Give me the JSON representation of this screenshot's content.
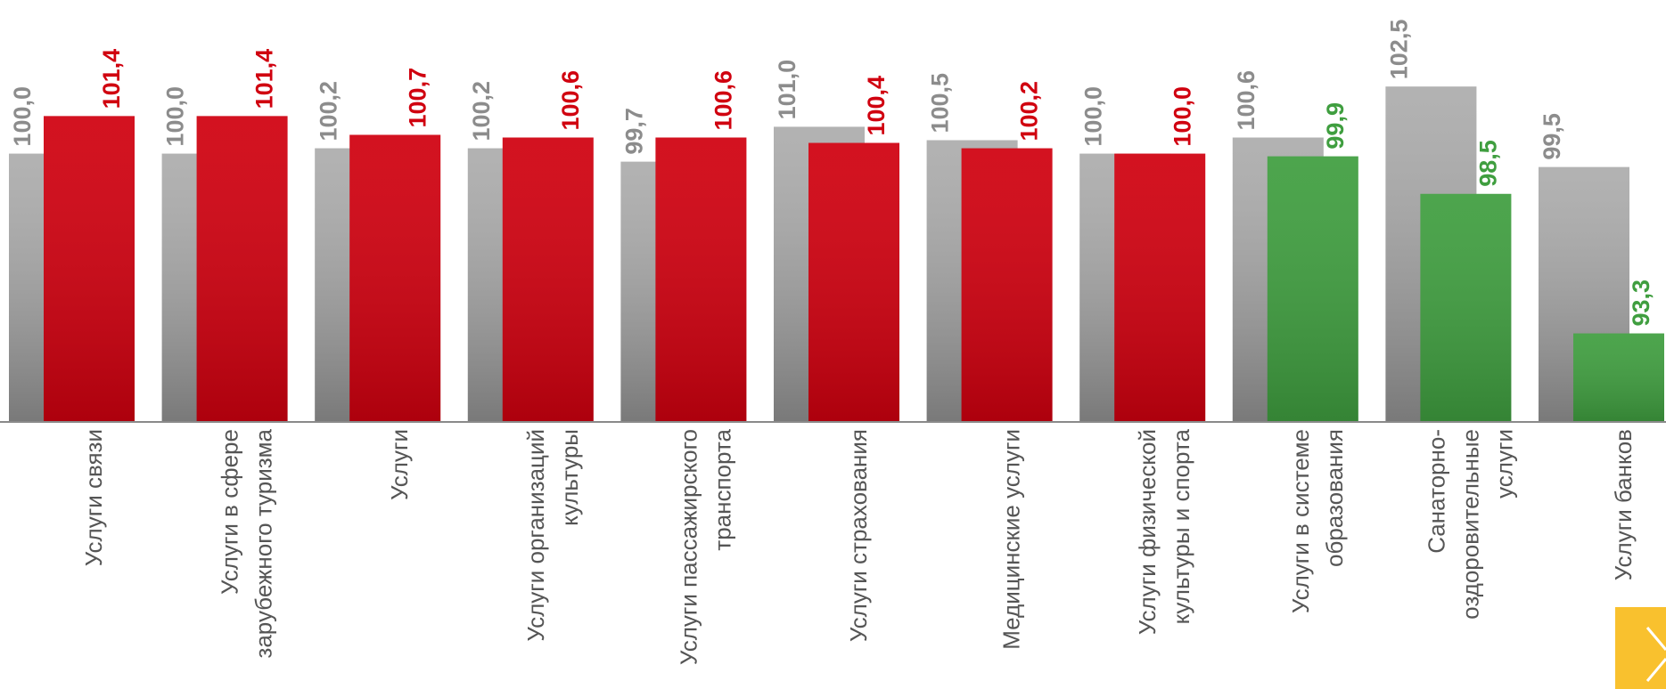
{
  "chart_data": {
    "type": "bar",
    "categories": [
      "Услуги связи",
      "Услуги в сфере зарубежного туризма",
      "Услуги",
      "Услуги организаций культуры",
      "Услуги пассажирского транспорта",
      "Услуги страхования",
      "Медицинские услуги",
      "Услуги физической культуры и спорта",
      "Услуги в системе образования",
      "Санаторно-оздоровительные услуги",
      "Услуги банков"
    ],
    "series": [
      {
        "color": "#a8a8a8",
        "label_color": "#8c8c8c",
        "values": [
          100.0,
          100.0,
          100.2,
          100.2,
          99.7,
          101.0,
          100.5,
          100.0,
          100.6,
          102.5,
          99.5
        ],
        "value_labels": [
          "100,0",
          "100,0",
          "100,2",
          "100,2",
          "99,7",
          "101,0",
          "100,5",
          "100,0",
          "100,6",
          "102,5",
          "99,5"
        ]
      },
      {
        "colors": [
          "#d0000f",
          "#d0000f",
          "#d0000f",
          "#d0000f",
          "#d0000f",
          "#d0000f",
          "#d0000f",
          "#d0000f",
          "#3f9e3f",
          "#3f9e3f",
          "#3f9e3f"
        ],
        "values": [
          101.4,
          101.4,
          100.7,
          100.6,
          100.6,
          100.4,
          100.2,
          100.0,
          99.9,
          98.5,
          93.3
        ],
        "value_labels": [
          "101,4",
          "101,4",
          "100,7",
          "100,6",
          "100,6",
          "100,4",
          "100,2",
          "100,0",
          "99,9",
          "98,5",
          "93,3"
        ]
      }
    ],
    "ylim": [
      90,
      104
    ]
  }
}
